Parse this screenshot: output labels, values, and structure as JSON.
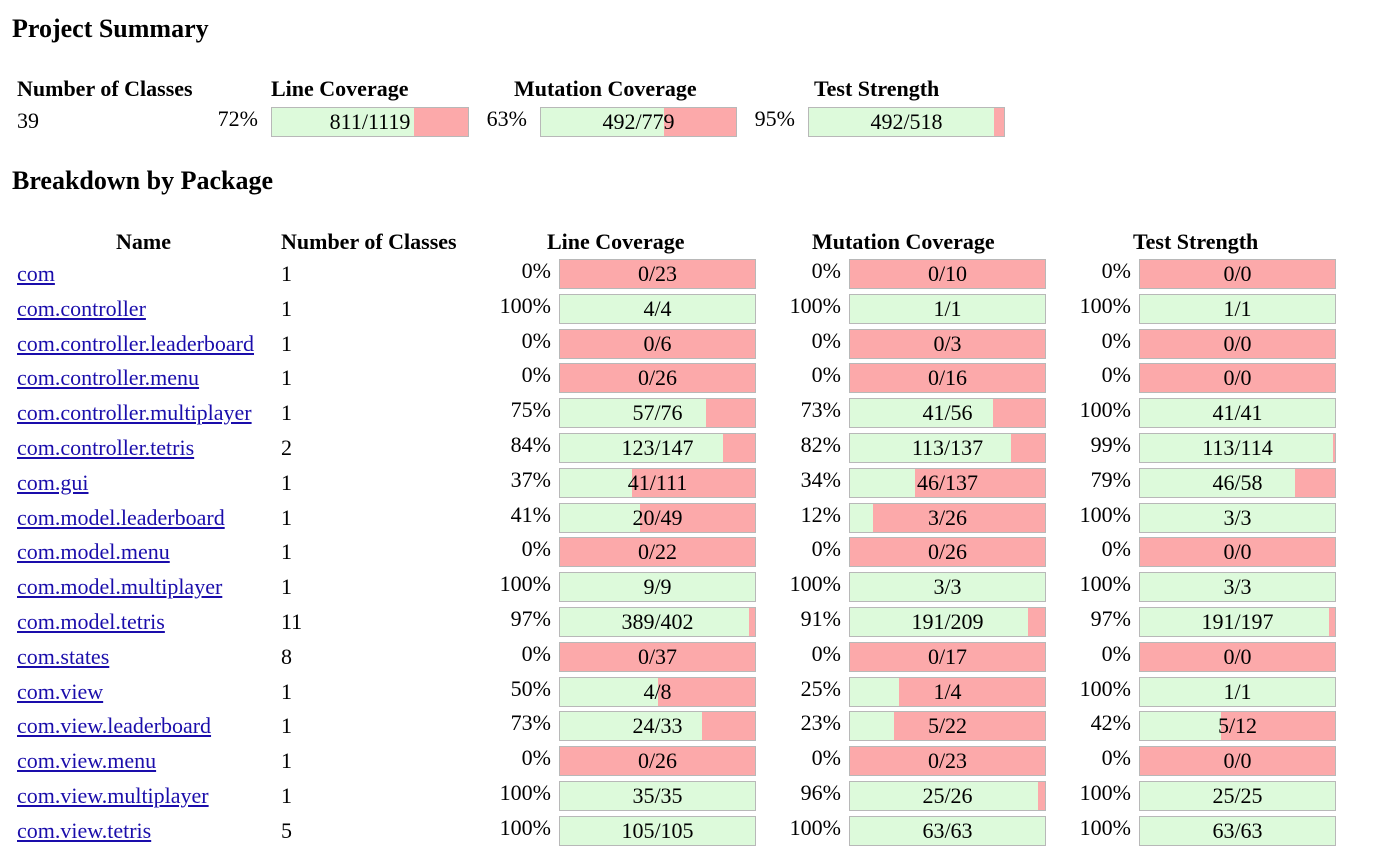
{
  "project_title": "Project Summary",
  "summary": {
    "headers": {
      "classes": "Number of Classes",
      "line": "Line Coverage",
      "mutation": "Mutation Coverage",
      "strength": "Test Strength"
    },
    "classes": "39",
    "line": {
      "pct": "72%",
      "text": "811/1119",
      "covered": 811,
      "total": 1119
    },
    "mutation": {
      "pct": "63%",
      "text": "492/779",
      "covered": 492,
      "total": 779
    },
    "strength": {
      "pct": "95%",
      "text": "492/518",
      "covered": 492,
      "total": 518
    }
  },
  "breakdown_title": "Breakdown by Package",
  "table_headers": {
    "name": "Name",
    "classes": "Number of Classes",
    "line": "Line Coverage",
    "mutation": "Mutation Coverage",
    "strength": "Test Strength"
  },
  "packages": [
    {
      "name": "com",
      "classes": "1",
      "line": {
        "pct": "0%",
        "text": "0/23",
        "covered": 0,
        "total": 23
      },
      "mutation": {
        "pct": "0%",
        "text": "0/10",
        "covered": 0,
        "total": 10
      },
      "strength": {
        "pct": "0%",
        "text": "0/0",
        "covered": 0,
        "total": 0
      }
    },
    {
      "name": "com.controller",
      "classes": "1",
      "line": {
        "pct": "100%",
        "text": "4/4",
        "covered": 4,
        "total": 4
      },
      "mutation": {
        "pct": "100%",
        "text": "1/1",
        "covered": 1,
        "total": 1
      },
      "strength": {
        "pct": "100%",
        "text": "1/1",
        "covered": 1,
        "total": 1
      }
    },
    {
      "name": "com.controller.leaderboard",
      "classes": "1",
      "line": {
        "pct": "0%",
        "text": "0/6",
        "covered": 0,
        "total": 6
      },
      "mutation": {
        "pct": "0%",
        "text": "0/3",
        "covered": 0,
        "total": 3
      },
      "strength": {
        "pct": "0%",
        "text": "0/0",
        "covered": 0,
        "total": 0
      }
    },
    {
      "name": "com.controller.menu",
      "classes": "1",
      "line": {
        "pct": "0%",
        "text": "0/26",
        "covered": 0,
        "total": 26
      },
      "mutation": {
        "pct": "0%",
        "text": "0/16",
        "covered": 0,
        "total": 16
      },
      "strength": {
        "pct": "0%",
        "text": "0/0",
        "covered": 0,
        "total": 0
      }
    },
    {
      "name": "com.controller.multiplayer",
      "classes": "1",
      "line": {
        "pct": "75%",
        "text": "57/76",
        "covered": 57,
        "total": 76
      },
      "mutation": {
        "pct": "73%",
        "text": "41/56",
        "covered": 41,
        "total": 56
      },
      "strength": {
        "pct": "100%",
        "text": "41/41",
        "covered": 41,
        "total": 41
      }
    },
    {
      "name": "com.controller.tetris",
      "classes": "2",
      "line": {
        "pct": "84%",
        "text": "123/147",
        "covered": 123,
        "total": 147
      },
      "mutation": {
        "pct": "82%",
        "text": "113/137",
        "covered": 113,
        "total": 137
      },
      "strength": {
        "pct": "99%",
        "text": "113/114",
        "covered": 113,
        "total": 114
      }
    },
    {
      "name": "com.gui",
      "classes": "1",
      "line": {
        "pct": "37%",
        "text": "41/111",
        "covered": 41,
        "total": 111
      },
      "mutation": {
        "pct": "34%",
        "text": "46/137",
        "covered": 46,
        "total": 137
      },
      "strength": {
        "pct": "79%",
        "text": "46/58",
        "covered": 46,
        "total": 58
      }
    },
    {
      "name": "com.model.leaderboard",
      "classes": "1",
      "line": {
        "pct": "41%",
        "text": "20/49",
        "covered": 20,
        "total": 49
      },
      "mutation": {
        "pct": "12%",
        "text": "3/26",
        "covered": 3,
        "total": 26
      },
      "strength": {
        "pct": "100%",
        "text": "3/3",
        "covered": 3,
        "total": 3
      }
    },
    {
      "name": "com.model.menu",
      "classes": "1",
      "line": {
        "pct": "0%",
        "text": "0/22",
        "covered": 0,
        "total": 22
      },
      "mutation": {
        "pct": "0%",
        "text": "0/26",
        "covered": 0,
        "total": 26
      },
      "strength": {
        "pct": "0%",
        "text": "0/0",
        "covered": 0,
        "total": 0
      }
    },
    {
      "name": "com.model.multiplayer",
      "classes": "1",
      "line": {
        "pct": "100%",
        "text": "9/9",
        "covered": 9,
        "total": 9
      },
      "mutation": {
        "pct": "100%",
        "text": "3/3",
        "covered": 3,
        "total": 3
      },
      "strength": {
        "pct": "100%",
        "text": "3/3",
        "covered": 3,
        "total": 3
      }
    },
    {
      "name": "com.model.tetris",
      "classes": "11",
      "line": {
        "pct": "97%",
        "text": "389/402",
        "covered": 389,
        "total": 402
      },
      "mutation": {
        "pct": "91%",
        "text": "191/209",
        "covered": 191,
        "total": 209
      },
      "strength": {
        "pct": "97%",
        "text": "191/197",
        "covered": 191,
        "total": 197
      }
    },
    {
      "name": "com.states",
      "classes": "8",
      "line": {
        "pct": "0%",
        "text": "0/37",
        "covered": 0,
        "total": 37
      },
      "mutation": {
        "pct": "0%",
        "text": "0/17",
        "covered": 0,
        "total": 17
      },
      "strength": {
        "pct": "0%",
        "text": "0/0",
        "covered": 0,
        "total": 0
      }
    },
    {
      "name": "com.view",
      "classes": "1",
      "line": {
        "pct": "50%",
        "text": "4/8",
        "covered": 4,
        "total": 8
      },
      "mutation": {
        "pct": "25%",
        "text": "1/4",
        "covered": 1,
        "total": 4
      },
      "strength": {
        "pct": "100%",
        "text": "1/1",
        "covered": 1,
        "total": 1
      }
    },
    {
      "name": "com.view.leaderboard",
      "classes": "1",
      "line": {
        "pct": "73%",
        "text": "24/33",
        "covered": 24,
        "total": 33
      },
      "mutation": {
        "pct": "23%",
        "text": "5/22",
        "covered": 5,
        "total": 22
      },
      "strength": {
        "pct": "42%",
        "text": "5/12",
        "covered": 5,
        "total": 12
      }
    },
    {
      "name": "com.view.menu",
      "classes": "1",
      "line": {
        "pct": "0%",
        "text": "0/26",
        "covered": 0,
        "total": 26
      },
      "mutation": {
        "pct": "0%",
        "text": "0/23",
        "covered": 0,
        "total": 23
      },
      "strength": {
        "pct": "0%",
        "text": "0/0",
        "covered": 0,
        "total": 0
      }
    },
    {
      "name": "com.view.multiplayer",
      "classes": "1",
      "line": {
        "pct": "100%",
        "text": "35/35",
        "covered": 35,
        "total": 35
      },
      "mutation": {
        "pct": "96%",
        "text": "25/26",
        "covered": 25,
        "total": 26
      },
      "strength": {
        "pct": "100%",
        "text": "25/25",
        "covered": 25,
        "total": 25
      }
    },
    {
      "name": "com.view.tetris",
      "classes": "5",
      "line": {
        "pct": "100%",
        "text": "105/105",
        "covered": 105,
        "total": 105
      },
      "mutation": {
        "pct": "100%",
        "text": "63/63",
        "covered": 63,
        "total": 63
      },
      "strength": {
        "pct": "100%",
        "text": "63/63",
        "covered": 63,
        "total": 63
      }
    }
  ],
  "colors": {
    "covered": "#ddfadb",
    "uncovered": "#fca9aa",
    "link": "#1a0dab"
  }
}
